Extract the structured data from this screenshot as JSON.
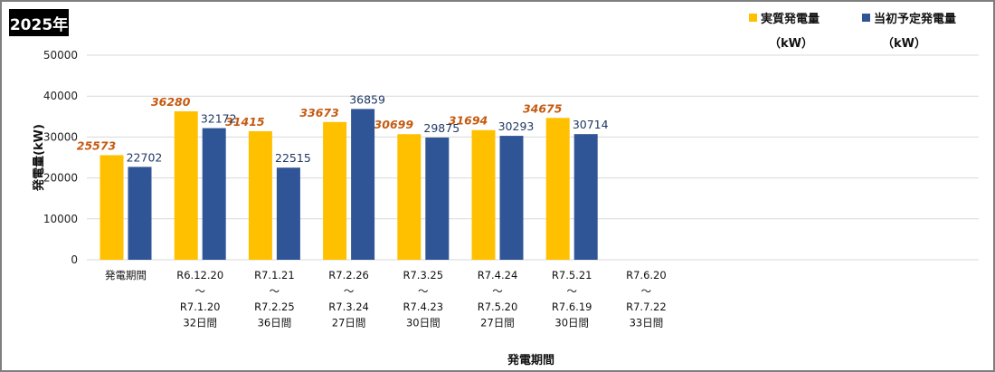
{
  "badge": "2025年",
  "chart_data": {
    "type": "bar",
    "ylabel": "発電量(kW)",
    "xlabel": "発電期間",
    "ylim": [
      0,
      50000
    ],
    "yticks": [
      "0",
      "10000",
      "20000",
      "30000",
      "40000",
      "50000"
    ],
    "grid": true,
    "legend_position": "top-right",
    "categories": [
      [
        "発電期間"
      ],
      [
        "R6.12.20",
        "～",
        "R7.1.20",
        "32日間"
      ],
      [
        "R7.1.21",
        "～",
        "R7.2.25",
        "36日間"
      ],
      [
        "R7.2.26",
        "～",
        "R7.3.24",
        "27日間"
      ],
      [
        "R7.3.25",
        "～",
        "R7.4.23",
        "30日間"
      ],
      [
        "R7.4.24",
        "～",
        "R7.5.20",
        "27日間"
      ],
      [
        "R7.5.21",
        "～",
        "R7.6.19",
        "30日間"
      ],
      [
        "R7.6.20",
        "～",
        "R7.7.22",
        "33日間"
      ]
    ],
    "series": [
      {
        "name": "実質発電量",
        "unit": "（kW）",
        "color": "#ffc000",
        "values": [
          25573,
          36280,
          31415,
          33673,
          30699,
          31694,
          34675,
          null
        ],
        "labels": [
          "25573",
          "36280",
          "31415",
          "33673",
          "30699",
          "31694",
          "34675",
          ""
        ]
      },
      {
        "name": "当初予定発電量",
        "unit": "（kW）",
        "color": "#2f5597",
        "values": [
          22702,
          32172,
          22515,
          36859,
          29875,
          30293,
          30714,
          null
        ],
        "labels": [
          "22702",
          "32172",
          "22515",
          "36859",
          "29875",
          "30293",
          "30714",
          ""
        ]
      }
    ]
  }
}
